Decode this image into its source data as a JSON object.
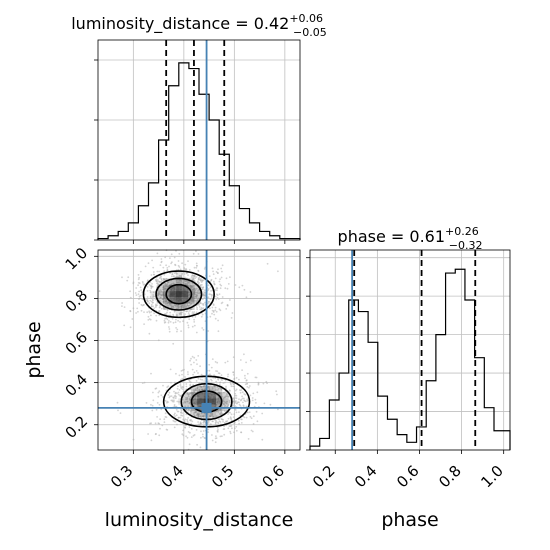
{
  "chart_data": [
    {
      "type": "histogram",
      "panel": "luminosity_distance-marginal",
      "title_param": "luminosity_distance",
      "title_value": "0.42",
      "title_plus": "+0.06",
      "title_minus": "−0.05",
      "bin_edges": [
        0.23,
        0.25,
        0.27,
        0.29,
        0.31,
        0.33,
        0.35,
        0.37,
        0.39,
        0.41,
        0.43,
        0.45,
        0.47,
        0.49,
        0.51,
        0.53,
        0.55,
        0.57,
        0.59,
        0.61,
        0.63
      ],
      "counts": [
        0.5,
        1.5,
        3,
        6,
        12,
        20,
        35,
        54,
        62,
        60,
        51,
        42,
        30,
        19,
        11,
        6,
        3,
        1.5,
        0.5,
        0.5
      ],
      "count_max": 70,
      "quantile_lines": [
        0.365,
        0.42,
        0.48
      ],
      "truth": 0.445,
      "xlim": [
        0.23,
        0.63
      ],
      "grid": true,
      "x_ticks": [
        0.3,
        0.4,
        0.5,
        0.6
      ],
      "x_tick_labels": []
    },
    {
      "type": "scatter+contour",
      "panel": "joint",
      "xlabel": "luminosity_distance",
      "ylabel": "phase",
      "xlim": [
        0.23,
        0.63
      ],
      "ylim": [
        0.08,
        1.03
      ],
      "x_ticks": [
        0.3,
        0.4,
        0.5,
        0.6
      ],
      "x_tick_labels": [
        "0.3",
        "0.4",
        "0.5",
        "0.6"
      ],
      "y_ticks": [
        0.2,
        0.4,
        0.6,
        0.8,
        1.0
      ],
      "y_tick_labels": [
        "0.2",
        "0.4",
        "0.6",
        "0.8",
        "1.0"
      ],
      "truth": {
        "x": 0.445,
        "y": 0.28
      },
      "modes": [
        {
          "x": 0.39,
          "y": 0.82,
          "levels": [
            [
              0.025,
              0.045
            ],
            [
              0.045,
              0.075
            ],
            [
              0.07,
              0.11
            ]
          ]
        },
        {
          "x": 0.445,
          "y": 0.31,
          "levels": [
            [
              0.03,
              0.05
            ],
            [
              0.05,
              0.085
            ],
            [
              0.085,
              0.12
            ]
          ]
        }
      ],
      "grid": true
    },
    {
      "type": "histogram",
      "panel": "phase-marginal",
      "title_param": "phase",
      "title_value": "0.61",
      "title_plus": "+0.26",
      "title_minus": "−0.32",
      "xlabel": "phase",
      "bin_edges": [
        0.08,
        0.126,
        0.172,
        0.218,
        0.264,
        0.31,
        0.356,
        0.402,
        0.448,
        0.494,
        0.54,
        0.586,
        0.632,
        0.678,
        0.724,
        0.77,
        0.816,
        0.862,
        0.908,
        0.954,
        1.0,
        1.03
      ],
      "counts": [
        1,
        3,
        13,
        20,
        39,
        36,
        28,
        14,
        8,
        4,
        2,
        6,
        18,
        30,
        46,
        47,
        39,
        24,
        11,
        5,
        5
      ],
      "count_max": 52,
      "quantile_lines": [
        0.29,
        0.61,
        0.865
      ],
      "truth": 0.28,
      "xlim": [
        0.08,
        1.03
      ],
      "grid": true,
      "x_ticks": [
        0.2,
        0.4,
        0.6,
        0.8,
        1.0
      ],
      "x_tick_labels": [
        "0.2",
        "0.4",
        "0.6",
        "0.8",
        "1.0"
      ]
    }
  ],
  "colors": {
    "truth": "#4682b4",
    "hist": "#000000",
    "grid": "#c0c0c0",
    "scatter": "#b0b0b0",
    "density": "#303030"
  }
}
